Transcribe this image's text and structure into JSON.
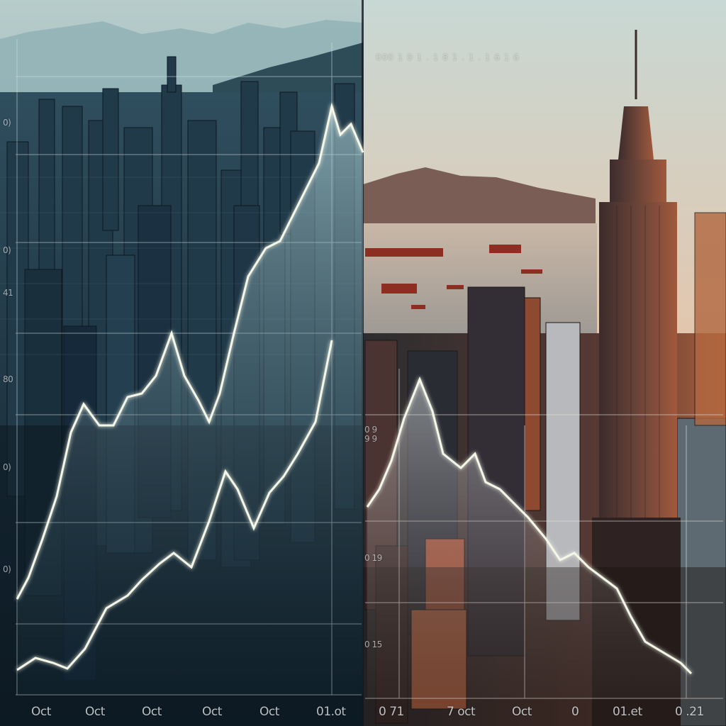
{
  "left_panel": {
    "y_tick_labels": [
      "0)",
      "0)",
      "41",
      "80",
      "0)",
      "0)"
    ],
    "x_tick_labels": [
      "Oct",
      "Oct",
      "Oct",
      "Oct",
      "Oct",
      "01.ot"
    ]
  },
  "right_panel": {
    "top_faint_text": "000 1 0 1 . 1 8 1 . 1 . 1 6 1 6",
    "y_tick_labels": [
      "0 9 9 9",
      "0 19",
      "0 15"
    ],
    "x_tick_labels": [
      "0 71",
      "7 oct",
      "Oct",
      "0",
      "01.et",
      "0 .21"
    ]
  },
  "colors": {
    "left_sky": "#6f9aa6",
    "left_city": "#1d3140",
    "right_sky_top": "#c9d9d6",
    "right_sky_bottom": "#e3a07c",
    "chart_line": "#f4f7e8"
  }
}
